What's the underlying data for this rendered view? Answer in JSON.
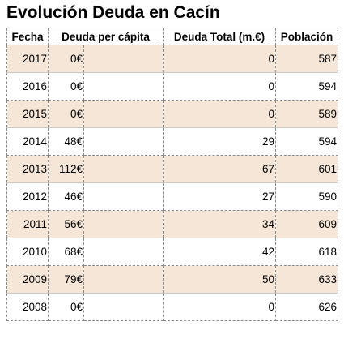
{
  "title": "Evolución Deuda en Cacín",
  "columns": {
    "fecha": "Fecha",
    "deuda_per_capita": "Deuda per cápita",
    "deuda_total": "Deuda Total (m.€)",
    "poblacion": "Población"
  },
  "rows": [
    {
      "fecha": "2017",
      "per_capita": "0€",
      "total": "0",
      "poblacion": "587"
    },
    {
      "fecha": "2016",
      "per_capita": "0€",
      "total": "0",
      "poblacion": "594"
    },
    {
      "fecha": "2015",
      "per_capita": "0€",
      "total": "0",
      "poblacion": "589"
    },
    {
      "fecha": "2014",
      "per_capita": "48€",
      "total": "29",
      "poblacion": "594"
    },
    {
      "fecha": "2013",
      "per_capita": "112€",
      "total": "67",
      "poblacion": "601"
    },
    {
      "fecha": "2012",
      "per_capita": "46€",
      "total": "27",
      "poblacion": "590"
    },
    {
      "fecha": "2011",
      "per_capita": "56€",
      "total": "34",
      "poblacion": "609"
    },
    {
      "fecha": "2010",
      "per_capita": "68€",
      "total": "42",
      "poblacion": "618"
    },
    {
      "fecha": "2009",
      "per_capita": "79€",
      "total": "50",
      "poblacion": "633"
    },
    {
      "fecha": "2008",
      "per_capita": "0€",
      "total": "0",
      "poblacion": "626"
    }
  ],
  "colors": {
    "shaded_row": "#f5e6d7",
    "plain_row": "#ffffff",
    "border": "#8a8a8a"
  }
}
